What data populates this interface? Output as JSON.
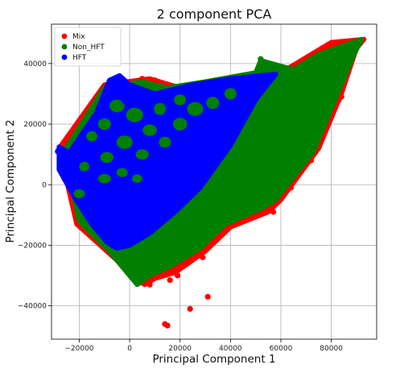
{
  "chart_data": {
    "type": "scatter",
    "title": "2 component PCA",
    "xlabel": "Principal Component 1",
    "ylabel": "Principal Component 2",
    "xlim": [
      -31000,
      98000
    ],
    "ylim": [
      -51000,
      53000
    ],
    "xticks": [
      -20000,
      0,
      20000,
      40000,
      60000,
      80000
    ],
    "xtick_labels": [
      "−20000",
      "0",
      "20000",
      "40000",
      "60000",
      "80000"
    ],
    "yticks": [
      -40000,
      -20000,
      0,
      20000,
      40000
    ],
    "ytick_labels": [
      "−40000",
      "−20000",
      "0",
      "20000",
      "40000"
    ],
    "grid": true,
    "legend_position": "top-left",
    "series": [
      {
        "name": "Mix",
        "color": "#ff0000",
        "region": [
          [
            -28000,
            12000
          ],
          [
            -10000,
            33000
          ],
          [
            8000,
            35000
          ],
          [
            20000,
            32000
          ],
          [
            40000,
            35000
          ],
          [
            60000,
            37000
          ],
          [
            80000,
            47000
          ],
          [
            93000,
            48000
          ],
          [
            90000,
            45000
          ],
          [
            84000,
            30000
          ],
          [
            75000,
            12000
          ],
          [
            60000,
            -5000
          ],
          [
            55000,
            -9000
          ],
          [
            40000,
            -14000
          ],
          [
            30000,
            -22000
          ],
          [
            18000,
            -29000
          ],
          [
            10000,
            -31000
          ],
          [
            6000,
            -33000
          ],
          [
            0,
            -30000
          ],
          [
            -5000,
            -25000
          ],
          [
            -21000,
            -13000
          ]
        ],
        "outliers": [
          [
            14000,
            -46000
          ],
          [
            15000,
            -46500
          ],
          [
            24000,
            -41000
          ],
          [
            31000,
            -37000
          ],
          [
            8000,
            -33000
          ],
          [
            16000,
            -31500
          ],
          [
            19000,
            -30000
          ],
          [
            23000,
            -26000
          ],
          [
            26000,
            -23000
          ],
          [
            34000,
            -18000
          ],
          [
            36000,
            -15000
          ],
          [
            41000,
            -9000
          ],
          [
            46000,
            -7000
          ],
          [
            57000,
            -9000
          ],
          [
            72000,
            8000
          ],
          [
            74000,
            12000
          ],
          [
            83000,
            28000
          ],
          [
            84000,
            29000
          ],
          [
            88000,
            45000
          ],
          [
            5000,
            35000
          ],
          [
            10000,
            34500
          ],
          [
            12000,
            33000
          ],
          [
            -2000,
            33500
          ],
          [
            76000,
            16000
          ],
          [
            64000,
            -1000
          ],
          [
            29000,
            -24000
          ]
        ]
      },
      {
        "name": "Non_HFT",
        "color": "#008000",
        "region": [
          [
            -26000,
            11000
          ],
          [
            -10000,
            32000
          ],
          [
            5000,
            34000
          ],
          [
            15000,
            32000
          ],
          [
            30000,
            34000
          ],
          [
            50000,
            37000
          ],
          [
            52000,
            41000
          ],
          [
            65000,
            38000
          ],
          [
            75000,
            43000
          ],
          [
            92000,
            48000
          ],
          [
            89000,
            43000
          ],
          [
            81000,
            27000
          ],
          [
            73000,
            11000
          ],
          [
            58000,
            -5000
          ],
          [
            52000,
            -8000
          ],
          [
            38000,
            -13000
          ],
          [
            28000,
            -21000
          ],
          [
            16000,
            -27000
          ],
          [
            8000,
            -30000
          ],
          [
            3000,
            -33000
          ],
          [
            -2000,
            -28000
          ],
          [
            -8000,
            -22000
          ],
          [
            -20000,
            -12000
          ]
        ],
        "outliers": [
          [
            52000,
            41500
          ],
          [
            8000,
            -29000
          ]
        ]
      },
      {
        "name": "HFT",
        "color": "#0000ff",
        "region": [
          [
            -28000,
            12500
          ],
          [
            -24000,
            10500
          ],
          [
            -13000,
            24000
          ],
          [
            -8000,
            34500
          ],
          [
            -4000,
            36000
          ],
          [
            0,
            33000
          ],
          [
            10000,
            30000
          ],
          [
            25000,
            33000
          ],
          [
            40000,
            35000
          ],
          [
            52000,
            36000
          ],
          [
            58000,
            36500
          ],
          [
            50000,
            28000
          ],
          [
            40000,
            13000
          ],
          [
            28000,
            -1000
          ],
          [
            18000,
            -9000
          ],
          [
            8000,
            -16000
          ],
          [
            0,
            -20000
          ],
          [
            -5000,
            -21000
          ],
          [
            -9000,
            -19000
          ],
          [
            -15000,
            -13000
          ],
          [
            -22000,
            -4000
          ],
          [
            -28000,
            5000
          ]
        ],
        "outliers": [
          [
            57000,
            35500
          ],
          [
            -28500,
            11000
          ]
        ]
      }
    ]
  }
}
